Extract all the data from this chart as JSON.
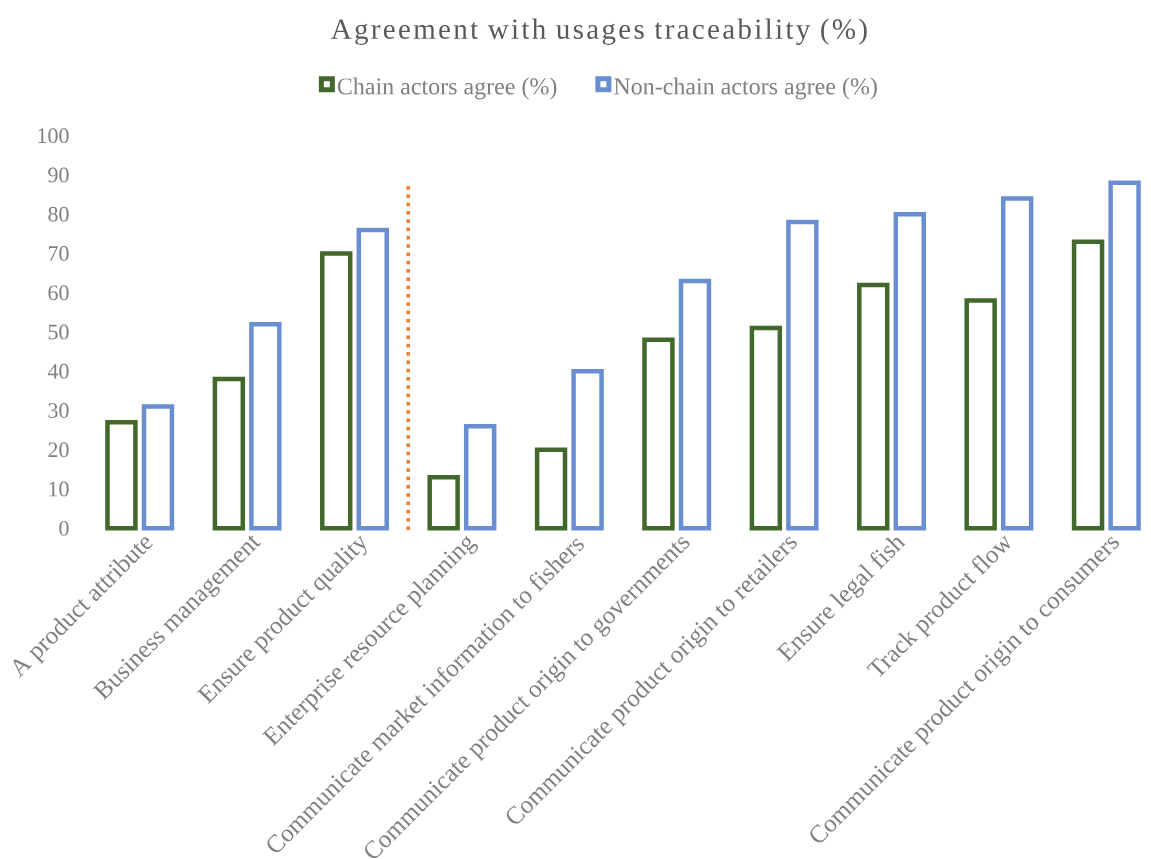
{
  "chart_data": {
    "type": "bar",
    "title": "Agreement with usages traceability (%)",
    "categories": [
      "A product attribute",
      "Business management",
      "Ensure product quality",
      "Enterprise resource planning",
      "Communicate market information to fishers",
      "Communicate product origin to governments",
      "Communicate product origin to retailers",
      "Ensure legal fish",
      "Track product flow",
      "Communicate product origin to consumers"
    ],
    "series": [
      {
        "name": "Chain actors agree (%)",
        "color": "#43682b",
        "values": [
          27,
          38,
          70,
          13,
          20,
          48,
          51,
          62,
          58,
          73
        ]
      },
      {
        "name": "Non-chain actors agree (%)",
        "color": "#6a8fd1",
        "values": [
          31,
          52,
          76,
          26,
          40,
          63,
          78,
          80,
          84,
          88
        ]
      }
    ],
    "ylim": [
      0,
      100
    ],
    "yticks": [
      0,
      10,
      20,
      30,
      40,
      50,
      60,
      70,
      80,
      90,
      100
    ],
    "legend": "top"
  }
}
